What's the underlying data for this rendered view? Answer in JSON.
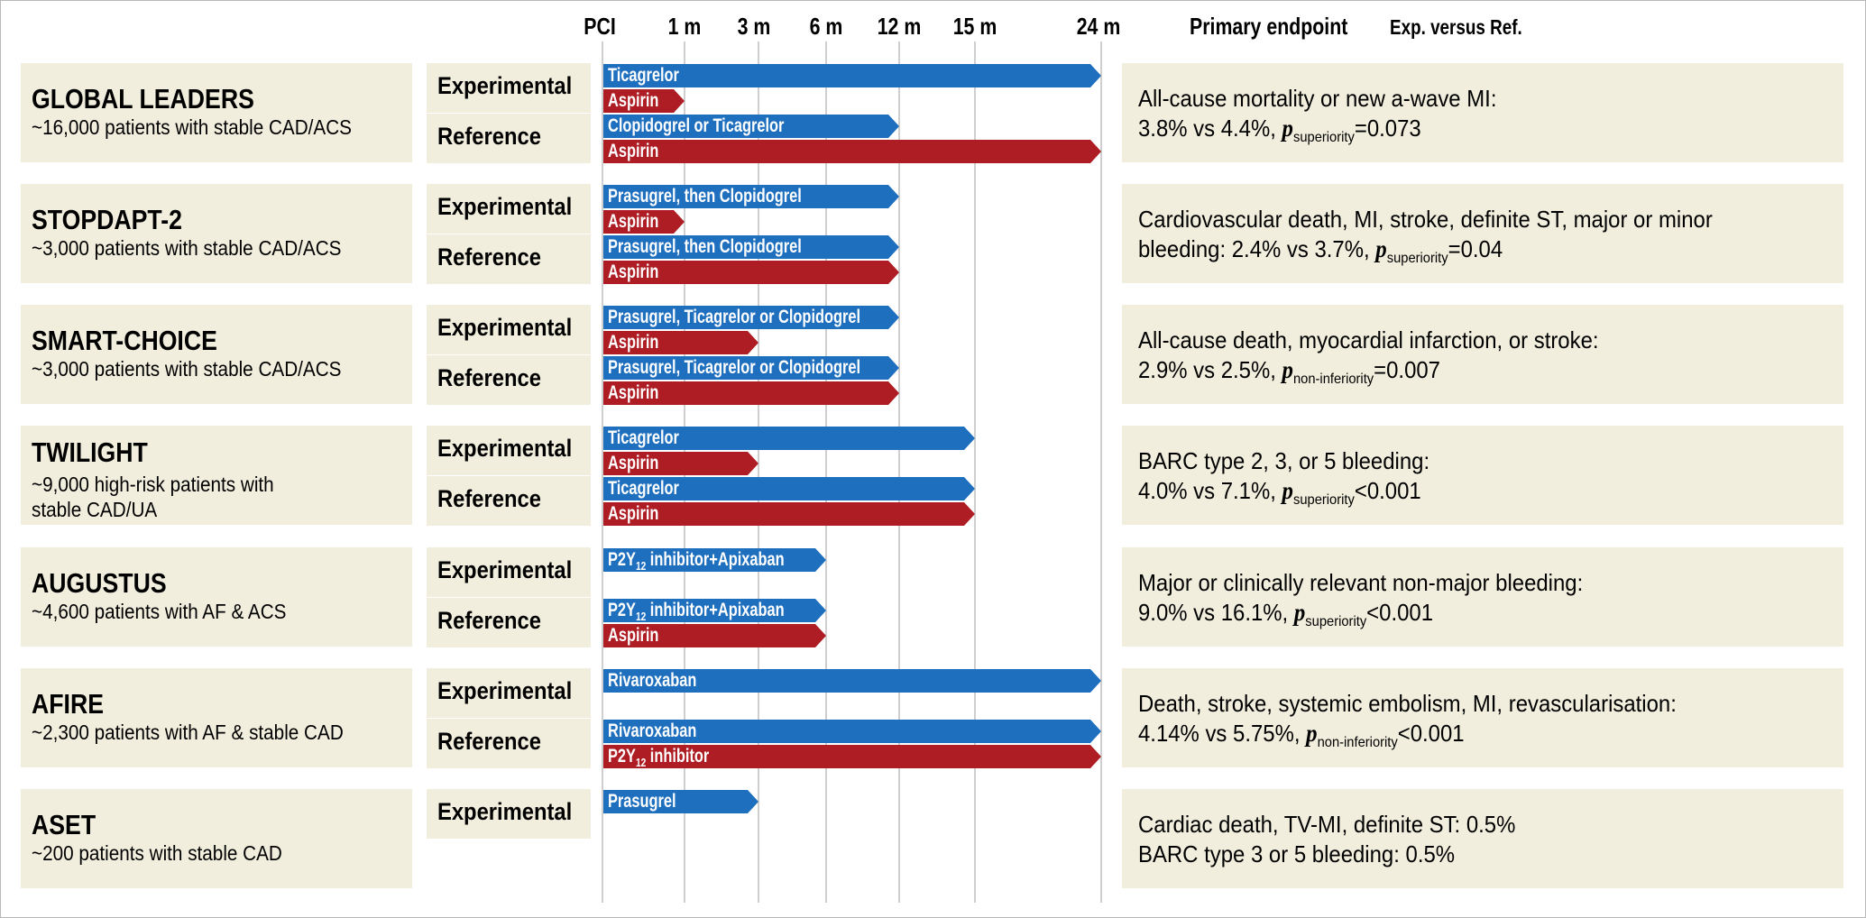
{
  "colors": {
    "p2y12": "#1f6fbf",
    "aspirin": "#ae1d24",
    "panel": "#f1eedd",
    "grid": "#cfcfcf"
  },
  "timeline_labels": [
    "PCI",
    "1 m",
    "3 m",
    "6 m",
    "12 m",
    "15 m",
    "24 m"
  ],
  "header": {
    "primary_endpoint": "Primary endpoint",
    "exp_vs_ref": "Exp. versus Ref."
  },
  "trials": [
    {
      "name": "GLOBAL LEADERS",
      "description": "~16,000 patients with stable CAD/ACS",
      "arms": [
        {
          "label": "Experimental",
          "bars": [
            {
              "drug": "Ticagrelor",
              "type": "p2y12",
              "end_months": 24
            },
            {
              "drug": "Aspirin",
              "type": "aspirin",
              "end_months": 1
            }
          ]
        },
        {
          "label": "Reference",
          "bars": [
            {
              "drug": "Clopidogrel or Ticagrelor",
              "type": "p2y12",
              "end_months": 12
            },
            {
              "drug": "Aspirin",
              "type": "aspirin",
              "end_months": 24
            }
          ]
        }
      ],
      "endpoint": {
        "line1": "All-cause mortality or new a-wave MI:",
        "line2_prefix": "3.8% vs 4.4%, ",
        "p": "p",
        "p_sub": "superiority",
        "p_suffix": "=0.073"
      }
    },
    {
      "name": "STOPDAPT-2",
      "description": "~3,000 patients with stable CAD/ACS",
      "arms": [
        {
          "label": "Experimental",
          "bars": [
            {
              "drug": "Prasugrel, then Clopidogrel",
              "type": "p2y12",
              "end_months": 12
            },
            {
              "drug": "Aspirin",
              "type": "aspirin",
              "end_months": 1
            }
          ]
        },
        {
          "label": "Reference",
          "bars": [
            {
              "drug": "Prasugrel, then Clopidogrel",
              "type": "p2y12",
              "end_months": 12
            },
            {
              "drug": "Aspirin",
              "type": "aspirin",
              "end_months": 12
            }
          ]
        }
      ],
      "endpoint": {
        "line1": "Cardiovascular death, MI, stroke, definite ST, major or minor",
        "line2_prefix": "bleeding: 2.4% vs 3.7%, ",
        "p": "p",
        "p_sub": "superiority",
        "p_suffix": "=0.04"
      }
    },
    {
      "name": "SMART-CHOICE",
      "description": "~3,000 patients with stable CAD/ACS",
      "arms": [
        {
          "label": "Experimental",
          "bars": [
            {
              "drug": "Prasugrel, Ticagrelor or Clopidogrel",
              "type": "p2y12",
              "end_months": 12
            },
            {
              "drug": "Aspirin",
              "type": "aspirin",
              "end_months": 3
            }
          ]
        },
        {
          "label": "Reference",
          "bars": [
            {
              "drug": "Prasugrel, Ticagrelor or Clopidogrel",
              "type": "p2y12",
              "end_months": 12
            },
            {
              "drug": "Aspirin",
              "type": "aspirin",
              "end_months": 12
            }
          ]
        }
      ],
      "endpoint": {
        "line1": "All-cause death, myocardial infarction, or stroke:",
        "line2_prefix": "2.9% vs 2.5%, ",
        "p": "p",
        "p_sub": "non-inferiority",
        "p_suffix": "=0.007"
      }
    },
    {
      "name": "TWILIGHT",
      "description": "~9,000 high-risk patients with\nstable CAD/UA",
      "arms": [
        {
          "label": "Experimental",
          "bars": [
            {
              "drug": "Ticagrelor",
              "type": "p2y12",
              "end_months": 15
            },
            {
              "drug": "Aspirin",
              "type": "aspirin",
              "end_months": 3
            }
          ]
        },
        {
          "label": "Reference",
          "bars": [
            {
              "drug": "Ticagrelor",
              "type": "p2y12",
              "end_months": 15
            },
            {
              "drug": "Aspirin",
              "type": "aspirin",
              "end_months": 15
            }
          ]
        }
      ],
      "endpoint": {
        "line1": "BARC type 2, 3, or 5 bleeding:",
        "line2_prefix": "4.0% vs 7.1%, ",
        "p": "p",
        "p_sub": "superiority",
        "p_suffix": "<0.001"
      }
    },
    {
      "name": "AUGUSTUS",
      "description": "~4,600 patients with AF & ACS",
      "arms": [
        {
          "label": "Experimental",
          "bars": [
            {
              "drug": "P2Y",
              "drug_sub": "12",
              "drug_suffix": " inhibitor+Apixaban",
              "type": "p2y12",
              "end_months": 6
            }
          ]
        },
        {
          "label": "Reference",
          "bars": [
            {
              "drug": "P2Y",
              "drug_sub": "12",
              "drug_suffix": " inhibitor+Apixaban",
              "type": "p2y12",
              "end_months": 6
            },
            {
              "drug": "Aspirin",
              "type": "aspirin",
              "end_months": 6
            }
          ]
        }
      ],
      "endpoint": {
        "line1": "Major or clinically relevant non-major bleeding:",
        "line2_prefix": "9.0% vs 16.1%, ",
        "p": "p",
        "p_sub": "superiority",
        "p_suffix": "<0.001"
      }
    },
    {
      "name": "AFIRE",
      "description": "~2,300 patients with AF & stable CAD",
      "arms": [
        {
          "label": "Experimental",
          "bars": [
            {
              "drug": "Rivaroxaban",
              "type": "p2y12",
              "end_months": 24
            }
          ]
        },
        {
          "label": "Reference",
          "bars": [
            {
              "drug": "Rivaroxaban",
              "type": "p2y12",
              "end_months": 24
            },
            {
              "drug": "P2Y",
              "drug_sub": "12",
              "drug_suffix": " inhibitor",
              "type": "aspirin",
              "end_months": 24
            }
          ]
        }
      ],
      "endpoint": {
        "line1": "Death, stroke, systemic embolism, MI, revascularisation:",
        "line2_prefix": "4.14% vs 5.75%, ",
        "p": "p",
        "p_sub": "non-inferiority",
        "p_suffix": "<0.001"
      }
    },
    {
      "name": "ASET",
      "description": "~200 patients with stable CAD",
      "arms": [
        {
          "label": "Experimental",
          "bars": [
            {
              "drug": "Prasugrel",
              "type": "p2y12",
              "end_months": 3
            }
          ]
        }
      ],
      "endpoint": {
        "line1": "Cardiac death, TV-MI, definite ST: 0.5%",
        "line2_prefix": "BARC type 3 or 5 bleeding: 0.5%",
        "p": "",
        "p_sub": "",
        "p_suffix": ""
      }
    }
  ]
}
